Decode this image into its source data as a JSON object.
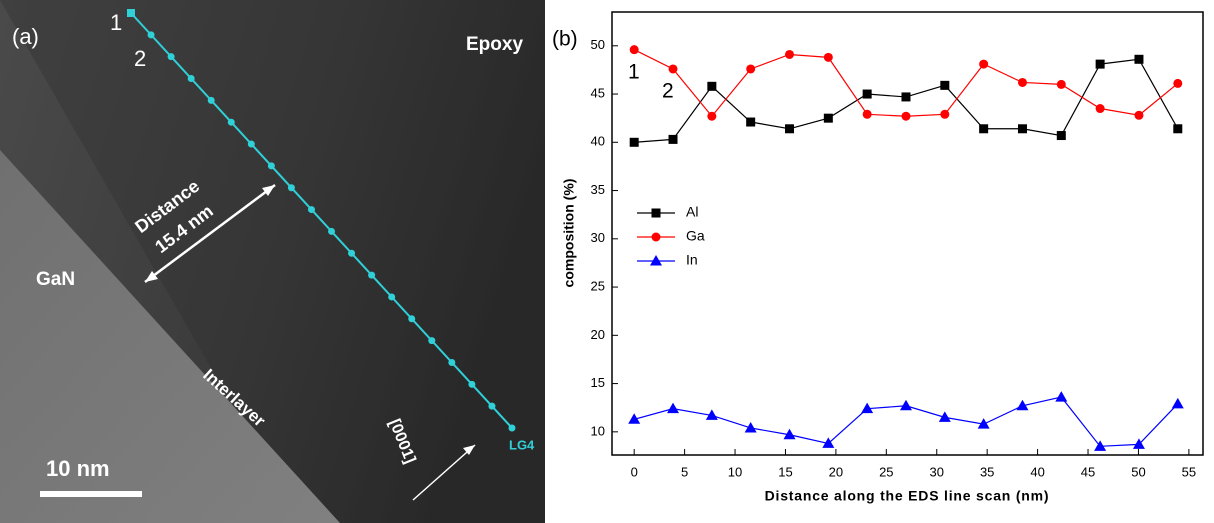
{
  "image_panel": {
    "panel_label": "(a)",
    "point_start": "1",
    "point_next": "2",
    "region_top": "Epoxy",
    "distance_label": "Distance",
    "distance_value": "15.4 nm",
    "region_left": "GaN",
    "region_middle": "Interlayer",
    "direction": "[0001]",
    "line_name": "LG4",
    "scale_bar": "10 nm"
  },
  "chart_data": {
    "type": "line",
    "panel_label": "(b)",
    "annotations": [
      "1",
      "2"
    ],
    "x_label": "Distance along the EDS line scan (nm)",
    "y_label": "composition (%)",
    "x": [
      0,
      3.85,
      7.7,
      11.55,
      15.4,
      19.25,
      23.1,
      26.95,
      30.8,
      34.65,
      38.5,
      42.35,
      46.2,
      50.05,
      53.9
    ],
    "series": [
      {
        "name": "Al",
        "color": "#000000",
        "marker": "square",
        "values": [
          40.0,
          40.3,
          45.8,
          42.1,
          41.4,
          42.5,
          45.0,
          44.7,
          45.9,
          41.4,
          41.4,
          40.7,
          48.1,
          48.6,
          41.4
        ]
      },
      {
        "name": "Ga",
        "color": "#ff0000",
        "marker": "circle",
        "values": [
          49.6,
          47.6,
          42.7,
          47.6,
          49.1,
          48.8,
          42.9,
          42.7,
          42.9,
          48.1,
          46.2,
          46.0,
          43.5,
          42.8,
          46.1
        ]
      },
      {
        "name": "In",
        "color": "#0000ff",
        "marker": "triangle",
        "values": [
          11.3,
          12.4,
          11.7,
          10.4,
          9.7,
          8.8,
          12.4,
          12.7,
          11.5,
          10.8,
          12.7,
          13.6,
          8.5,
          8.7,
          12.9
        ]
      }
    ],
    "xlim": [
      -2.2,
      56.4
    ],
    "ylim": [
      7.6,
      53.5
    ],
    "xticks": [
      0,
      5,
      10,
      15,
      20,
      25,
      30,
      35,
      40,
      45,
      50,
      55
    ],
    "yticks": [
      10,
      15,
      20,
      25,
      30,
      35,
      40,
      45,
      50
    ],
    "legend": "center-left",
    "grid": false
  }
}
